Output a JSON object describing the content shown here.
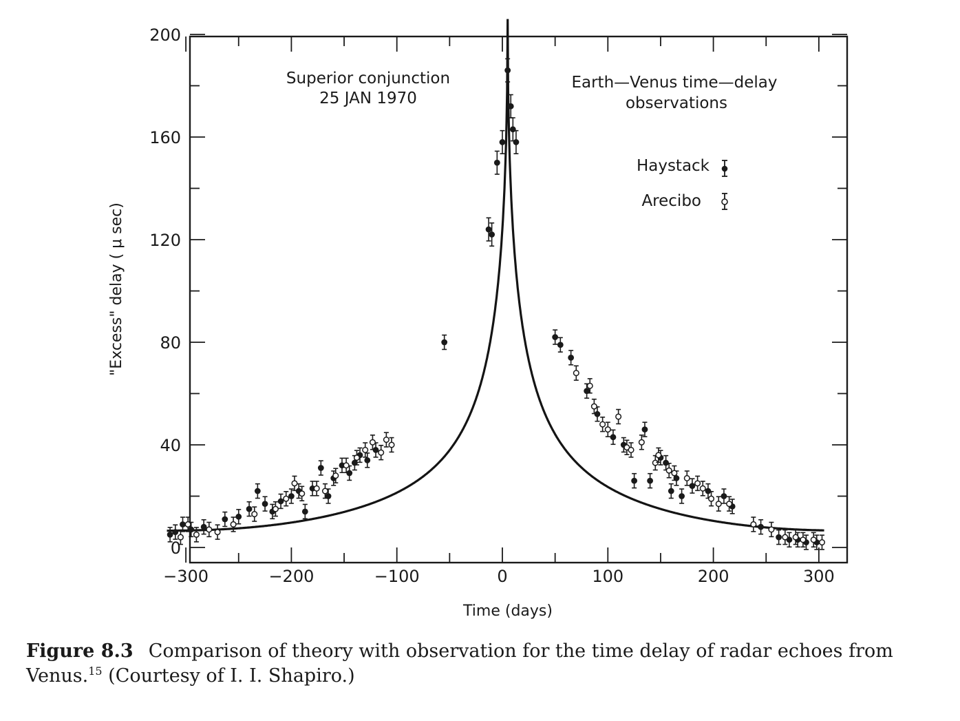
{
  "chart_data": {
    "type": "scatter",
    "xlabel": "Time (days)",
    "ylabel": "\"Excess\" delay ( μ sec)",
    "xlim": [
      -322,
      322
    ],
    "ylim": [
      -5,
      200
    ],
    "x_ticks": [
      -300,
      -200,
      -100,
      0,
      100,
      200,
      300
    ],
    "x_tick_labels": [
      "−300",
      "−200",
      "−100",
      "0",
      "100",
      "200",
      "300"
    ],
    "y_ticks": [
      0,
      40,
      80,
      120,
      160,
      200
    ],
    "y_tick_labels": [
      "0",
      "40",
      "80",
      "120",
      "160",
      "200"
    ],
    "annotations": [
      {
        "lines": [
          "Superior conjunction",
          "25 JAN 1970"
        ]
      },
      {
        "lines": [
          "Earth—Venus time—delay",
          "observations"
        ]
      }
    ],
    "legend_position": "top-right",
    "series": [
      {
        "name": "Haystack",
        "marker": "filled-circle",
        "points": [
          [
            -315,
            5
          ],
          [
            -310,
            6
          ],
          [
            -303,
            9
          ],
          [
            -295,
            7
          ],
          [
            -283,
            8
          ],
          [
            -263,
            11
          ],
          [
            -250,
            12
          ],
          [
            -240,
            15
          ],
          [
            -232,
            22
          ],
          [
            -225,
            17
          ],
          [
            -218,
            14
          ],
          [
            -210,
            18
          ],
          [
            -200,
            20
          ],
          [
            -193,
            22
          ],
          [
            -187,
            14
          ],
          [
            -180,
            23
          ],
          [
            -172,
            31
          ],
          [
            -165,
            20
          ],
          [
            -160,
            27
          ],
          [
            -152,
            32
          ],
          [
            -145,
            29
          ],
          [
            -140,
            33
          ],
          [
            -135,
            36
          ],
          [
            -128,
            34
          ],
          [
            -120,
            38
          ],
          [
            -55,
            80
          ],
          [
            -13,
            124
          ],
          [
            -10,
            122
          ],
          [
            -5,
            150
          ],
          [
            0,
            158
          ],
          [
            5,
            186
          ],
          [
            8,
            172
          ],
          [
            10,
            163
          ],
          [
            13,
            158
          ],
          [
            50,
            82
          ],
          [
            55,
            79
          ],
          [
            65,
            74
          ],
          [
            80,
            61
          ],
          [
            90,
            52
          ],
          [
            105,
            43
          ],
          [
            115,
            40
          ],
          [
            125,
            26
          ],
          [
            135,
            46
          ],
          [
            140,
            26
          ],
          [
            150,
            35
          ],
          [
            155,
            33
          ],
          [
            160,
            22
          ],
          [
            165,
            27
          ],
          [
            170,
            20
          ],
          [
            180,
            24
          ],
          [
            195,
            22
          ],
          [
            210,
            20
          ],
          [
            218,
            16
          ],
          [
            245,
            8
          ],
          [
            262,
            4
          ],
          [
            272,
            3
          ],
          [
            280,
            3
          ],
          [
            288,
            2
          ],
          [
            298,
            2
          ]
        ]
      },
      {
        "name": "Arecibo",
        "marker": "open-circle",
        "points": [
          [
            -305,
            4
          ],
          [
            -298,
            9
          ],
          [
            -290,
            5
          ],
          [
            -278,
            7
          ],
          [
            -270,
            6
          ],
          [
            -255,
            9
          ],
          [
            -235,
            13
          ],
          [
            -215,
            15
          ],
          [
            -205,
            19
          ],
          [
            -197,
            25
          ],
          [
            -190,
            21
          ],
          [
            -176,
            23
          ],
          [
            -168,
            22
          ],
          [
            -158,
            28
          ],
          [
            -148,
            32
          ],
          [
            -138,
            35
          ],
          [
            -130,
            38
          ],
          [
            -123,
            41
          ],
          [
            -115,
            37
          ],
          [
            -110,
            42
          ],
          [
            -105,
            40
          ],
          [
            70,
            68
          ],
          [
            83,
            63
          ],
          [
            87,
            55
          ],
          [
            95,
            48
          ],
          [
            100,
            46
          ],
          [
            110,
            51
          ],
          [
            118,
            39
          ],
          [
            122,
            38
          ],
          [
            132,
            41
          ],
          [
            145,
            33
          ],
          [
            148,
            36
          ],
          [
            158,
            30
          ],
          [
            163,
            29
          ],
          [
            175,
            27
          ],
          [
            185,
            25
          ],
          [
            190,
            23
          ],
          [
            198,
            19
          ],
          [
            205,
            17
          ],
          [
            215,
            17
          ],
          [
            238,
            9
          ],
          [
            255,
            7
          ],
          [
            268,
            4
          ],
          [
            278,
            4
          ],
          [
            285,
            3
          ],
          [
            295,
            3
          ],
          [
            303,
            2
          ]
        ]
      }
    ]
  },
  "caption": {
    "label": "Figure 8.3",
    "text": "Comparison of theory with observation for the time delay of radar echoes from Venus.",
    "ref": "15",
    "credit": "(Courtesy of I. I. Shapiro.)"
  }
}
